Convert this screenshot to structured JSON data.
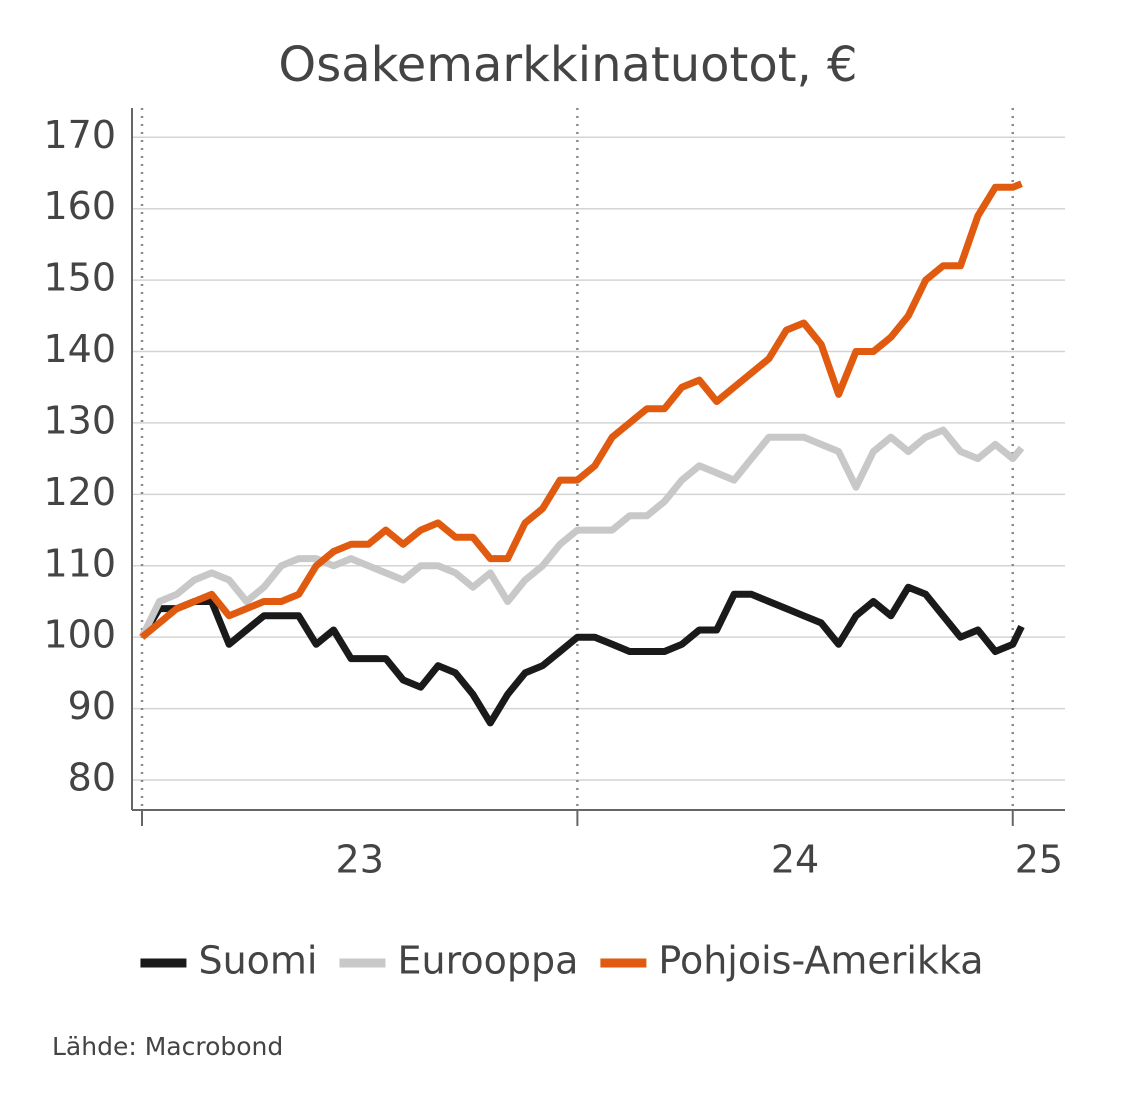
{
  "chart_data": {
    "type": "line",
    "title": "Osakemarkkinatuotot, €",
    "x": [
      23.0,
      23.04,
      23.08,
      23.12,
      23.16,
      23.2,
      23.24,
      23.28,
      23.32,
      23.36,
      23.4,
      23.44,
      23.48,
      23.52,
      23.56,
      23.6,
      23.64,
      23.68,
      23.72,
      23.76,
      23.8,
      23.84,
      23.88,
      23.92,
      23.96,
      24.0,
      24.04,
      24.08,
      24.12,
      24.16,
      24.2,
      24.24,
      24.28,
      24.32,
      24.36,
      24.4,
      24.44,
      24.48,
      24.52,
      24.56,
      24.6,
      24.64,
      24.68,
      24.72,
      24.76,
      24.8,
      24.84,
      24.88,
      24.92,
      24.96,
      25.0,
      25.02
    ],
    "series": [
      {
        "name": "Suomi",
        "color": "#1a1a1a",
        "values": [
          100,
          104,
          104,
          105,
          105,
          99,
          101,
          103,
          103,
          103,
          99,
          101,
          97,
          97,
          97,
          94,
          93,
          96,
          95,
          92,
          88,
          92,
          95,
          96,
          98,
          100,
          100,
          99,
          98,
          98,
          98,
          99,
          101,
          101,
          106,
          106,
          105,
          104,
          103,
          102,
          99,
          103,
          105,
          103,
          107,
          106,
          103,
          100,
          101,
          98,
          99,
          101.5
        ]
      },
      {
        "name": "Eurooppa",
        "color": "#c8c8c8",
        "values": [
          100,
          105,
          106,
          108,
          109,
          108,
          105,
          107,
          110,
          111,
          111,
          110,
          111,
          110,
          109,
          108,
          110,
          110,
          109,
          107,
          109,
          105,
          108,
          110,
          113,
          115,
          115,
          115,
          117,
          117,
          119,
          122,
          124,
          123,
          122,
          125,
          128,
          128,
          128,
          127,
          126,
          121,
          126,
          128,
          126,
          128,
          129,
          126,
          125,
          127,
          125,
          126.5
        ]
      },
      {
        "name": "Pohjois-Amerikka",
        "color": "#e05a0f",
        "values": [
          100,
          102,
          104,
          105,
          106,
          103,
          104,
          105,
          105,
          106,
          110,
          112,
          113,
          113,
          115,
          113,
          115,
          116,
          114,
          114,
          111,
          111,
          116,
          118,
          122,
          122,
          124,
          128,
          130,
          132,
          132,
          135,
          136,
          133,
          135,
          137,
          139,
          143,
          144,
          141,
          134,
          140,
          140,
          142,
          145,
          150,
          152,
          152,
          159,
          163,
          163,
          163.5
        ]
      }
    ],
    "xlim": [
      22.977,
      25.12
    ],
    "xticks": [
      23,
      24,
      25
    ],
    "xlabels": [
      {
        "value": 23.5,
        "label": "23"
      },
      {
        "value": 24.5,
        "label": "24"
      },
      {
        "value": 25.06,
        "label": "25"
      }
    ],
    "ylim": [
      75.8,
      174.1
    ],
    "yticks": [
      80,
      90,
      100,
      110,
      120,
      130,
      140,
      150,
      160,
      170
    ],
    "grid": true,
    "source": "Lähde: Macrobond"
  }
}
